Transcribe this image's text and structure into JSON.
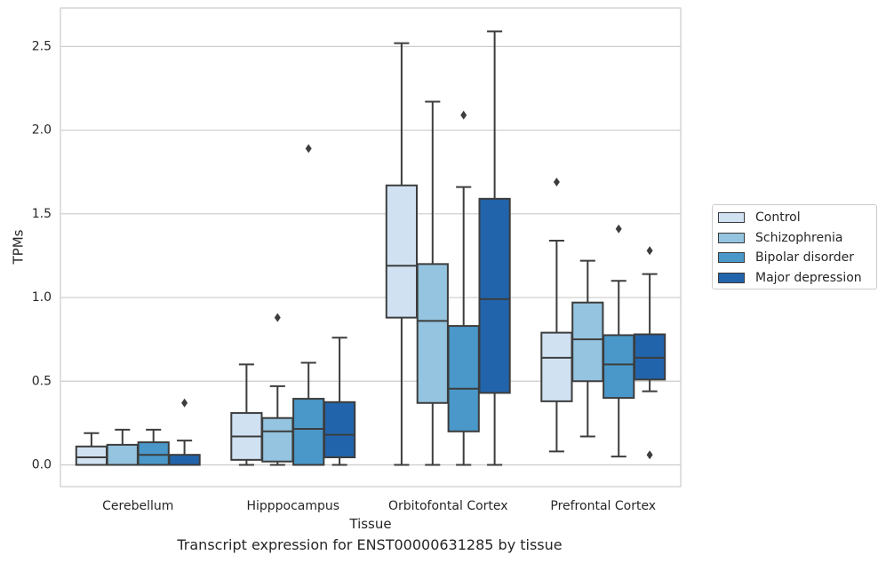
{
  "caption": "Transcript expression for ENST00000631285 by tissue",
  "chart_data": {
    "type": "box",
    "xlabel": "Tissue",
    "ylabel": "TPMs",
    "ylim": [
      -0.13,
      2.73
    ],
    "yticks": [
      "0.0",
      "0.5",
      "1.0",
      "1.5",
      "2.0",
      "2.5"
    ],
    "ytick_values": [
      0,
      0.5,
      1.0,
      1.5,
      2.0,
      2.5
    ],
    "grid": true,
    "legend_position": "right",
    "categories": [
      "Cerebellum",
      "Hipppocampus",
      "Orbitofontal Cortex",
      "Prefrontal Cortex"
    ],
    "series": [
      {
        "name": "Control",
        "color": "#d0e1f2",
        "boxes": [
          {
            "whislo": 0.0,
            "q1": 0.0,
            "med": 0.045,
            "q3": 0.11,
            "whishi": 0.19,
            "fliers": []
          },
          {
            "whislo": 0.0,
            "q1": 0.03,
            "med": 0.17,
            "q3": 0.31,
            "whishi": 0.6,
            "fliers": []
          },
          {
            "whislo": 0.0,
            "q1": 0.88,
            "med": 1.19,
            "q3": 1.67,
            "whishi": 2.52,
            "fliers": []
          },
          {
            "whislo": 0.08,
            "q1": 0.38,
            "med": 0.64,
            "q3": 0.79,
            "whishi": 1.34,
            "fliers": [
              1.69
            ]
          }
        ]
      },
      {
        "name": "Schizophrenia",
        "color": "#94c4df",
        "boxes": [
          {
            "whislo": 0.0,
            "q1": 0.0,
            "med": 0.0,
            "q3": 0.12,
            "whishi": 0.21,
            "fliers": []
          },
          {
            "whislo": 0.0,
            "q1": 0.02,
            "med": 0.2,
            "q3": 0.28,
            "whishi": 0.47,
            "fliers": [
              0.88
            ]
          },
          {
            "whislo": 0.0,
            "q1": 0.37,
            "med": 0.86,
            "q3": 1.2,
            "whishi": 2.17,
            "fliers": []
          },
          {
            "whislo": 0.17,
            "q1": 0.5,
            "med": 0.75,
            "q3": 0.97,
            "whishi": 1.22,
            "fliers": []
          }
        ]
      },
      {
        "name": "Bipolar disorder",
        "color": "#4a98c9",
        "boxes": [
          {
            "whislo": 0.0,
            "q1": 0.0,
            "med": 0.06,
            "q3": 0.135,
            "whishi": 0.21,
            "fliers": []
          },
          {
            "whislo": 0.0,
            "q1": 0.0,
            "med": 0.215,
            "q3": 0.395,
            "whishi": 0.61,
            "fliers": [
              1.89
            ]
          },
          {
            "whislo": 0.0,
            "q1": 0.2,
            "med": 0.455,
            "q3": 0.83,
            "whishi": 1.66,
            "fliers": [
              2.09
            ]
          },
          {
            "whislo": 0.05,
            "q1": 0.4,
            "med": 0.6,
            "q3": 0.775,
            "whishi": 1.1,
            "fliers": [
              1.41
            ]
          }
        ]
      },
      {
        "name": "Major depression",
        "color": "#2164ab",
        "boxes": [
          {
            "whislo": 0.0,
            "q1": 0.0,
            "med": 0.0,
            "q3": 0.06,
            "whishi": 0.145,
            "fliers": [
              0.37
            ]
          },
          {
            "whislo": 0.0,
            "q1": 0.045,
            "med": 0.18,
            "q3": 0.375,
            "whishi": 0.76,
            "fliers": []
          },
          {
            "whislo": 0.0,
            "q1": 0.43,
            "med": 0.99,
            "q3": 1.59,
            "whishi": 2.59,
            "fliers": []
          },
          {
            "whislo": 0.44,
            "q1": 0.51,
            "med": 0.64,
            "q3": 0.78,
            "whishi": 1.14,
            "fliers": [
              1.28,
              0.06
            ]
          }
        ]
      }
    ]
  }
}
